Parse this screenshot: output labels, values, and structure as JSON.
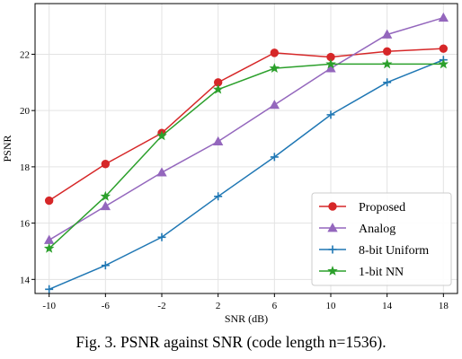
{
  "chart_data": {
    "type": "line",
    "x": [
      -10,
      -6,
      -2,
      2,
      6,
      10,
      14,
      18
    ],
    "xticks": [
      "-10",
      "-6",
      "-2",
      "2",
      "6",
      "10",
      "14",
      "18"
    ],
    "yticks": [
      14,
      16,
      18,
      20,
      22
    ],
    "ytick_labels": [
      "14",
      "16",
      "18",
      "20",
      "22"
    ],
    "xlim": [
      -11,
      19
    ],
    "ylim": [
      13.5,
      23.8
    ],
    "xlabel": "SNR (dB)",
    "ylabel": "PSNR",
    "grid": true,
    "legend_position": "lower-right",
    "series": [
      {
        "name": "Proposed",
        "color": "#d62728",
        "marker": "circle",
        "values": [
          16.8,
          18.1,
          19.2,
          21.0,
          22.05,
          21.9,
          22.1,
          22.2
        ]
      },
      {
        "name": "Analog",
        "color": "#9467bd",
        "marker": "triangle",
        "values": [
          15.4,
          16.6,
          17.8,
          18.9,
          20.2,
          21.5,
          22.7,
          23.3
        ]
      },
      {
        "name": "8-bit Uniform",
        "color": "#1f77b4",
        "marker": "plus",
        "values": [
          13.65,
          14.5,
          15.5,
          16.95,
          18.35,
          19.85,
          21.0,
          21.8
        ]
      },
      {
        "name": "1-bit NN",
        "color": "#2ca02c",
        "marker": "star",
        "values": [
          15.1,
          16.95,
          19.1,
          20.75,
          21.5,
          21.65,
          21.65,
          21.65
        ]
      }
    ]
  },
  "caption": "Fig. 3.   PSNR against SNR (code length n=1536)."
}
